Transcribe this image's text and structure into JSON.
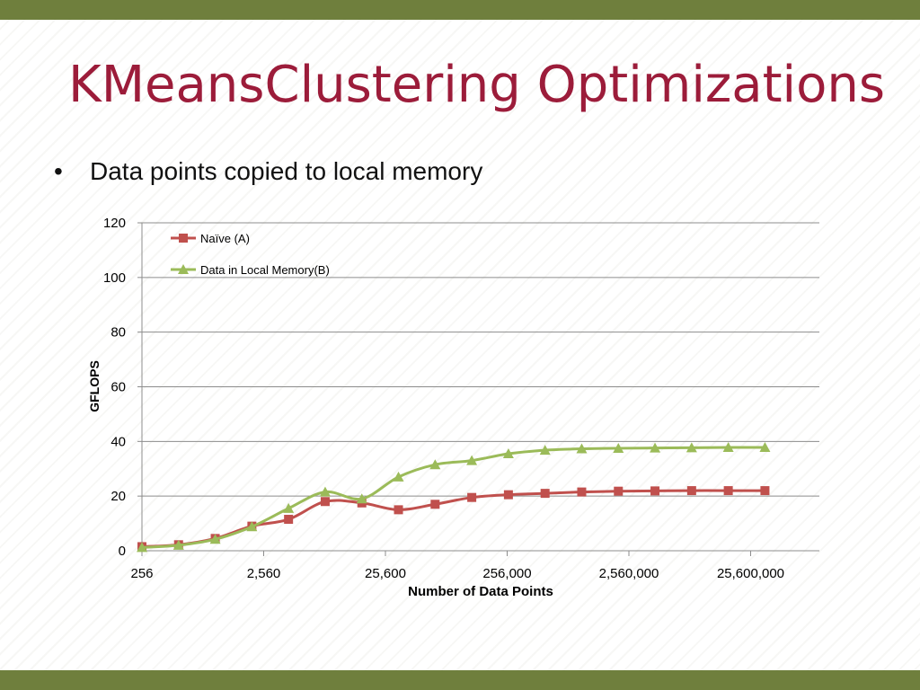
{
  "slide": {
    "title": "KMeansClustering Optimizations",
    "bullet": "Data points copied to local memory",
    "bullet_symbol": "•",
    "accent_color": "#6f7f3d",
    "title_color": "#9c1c3a"
  },
  "chart_data": {
    "type": "line",
    "title": "",
    "xlabel": "Number of Data Points",
    "ylabel": "GFLOPS",
    "ylim": [
      0,
      120
    ],
    "yticks": [
      "0",
      "20",
      "40",
      "60",
      "80",
      "100",
      "120"
    ],
    "xscale": "log",
    "xticks": [
      {
        "label": "256",
        "value": 256
      },
      {
        "label": "2,560",
        "value": 2560
      },
      {
        "label": "25,600",
        "value": 25600
      },
      {
        "label": "256,000",
        "value": 256000
      },
      {
        "label": "2,560,000",
        "value": 2560000
      },
      {
        "label": "25,600,000",
        "value": 25600000
      }
    ],
    "grid": true,
    "legend_position": "top-left",
    "x": [
      256,
      512,
      1024,
      2048,
      4096,
      8192,
      16384,
      32768,
      65536,
      131072,
      262144,
      524288,
      1048576,
      2097152,
      4194304,
      8388608,
      16777216,
      33554432
    ],
    "series": [
      {
        "name": "Naïve (A)",
        "color": "#c0504d",
        "marker": "square",
        "values": [
          1.5,
          2.2,
          4.5,
          9.0,
          11.5,
          18.0,
          17.5,
          15.0,
          17.0,
          19.5,
          20.5,
          21.0,
          21.5,
          21.8,
          21.9,
          22.0,
          22.0,
          22.0
        ]
      },
      {
        "name": "Data in Local Memory(B)",
        "color": "#9bbb59",
        "marker": "triangle",
        "values": [
          1.2,
          2.0,
          4.2,
          8.8,
          15.5,
          21.5,
          19.0,
          27.0,
          31.5,
          33.0,
          35.5,
          36.8,
          37.3,
          37.5,
          37.6,
          37.7,
          37.8,
          37.8
        ]
      }
    ]
  }
}
